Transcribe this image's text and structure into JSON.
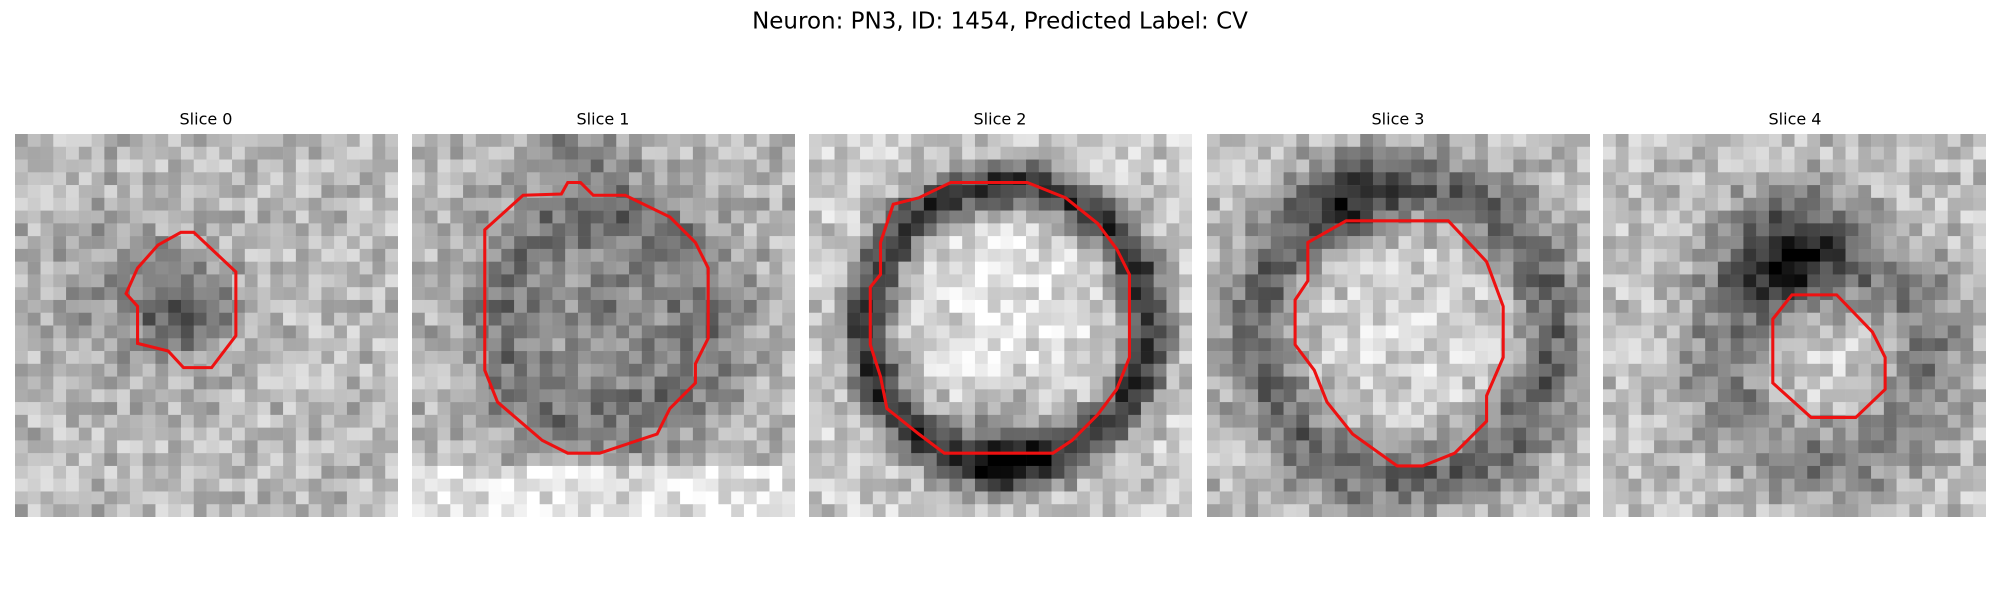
{
  "title": "Neuron: PN3, ID: 1454, Predicted Label: CV",
  "panels": [
    {
      "title": "Slice 0"
    },
    {
      "title": "Slice 1"
    },
    {
      "title": "Slice 2"
    },
    {
      "title": "Slice 3"
    },
    {
      "title": "Slice 4"
    }
  ]
}
